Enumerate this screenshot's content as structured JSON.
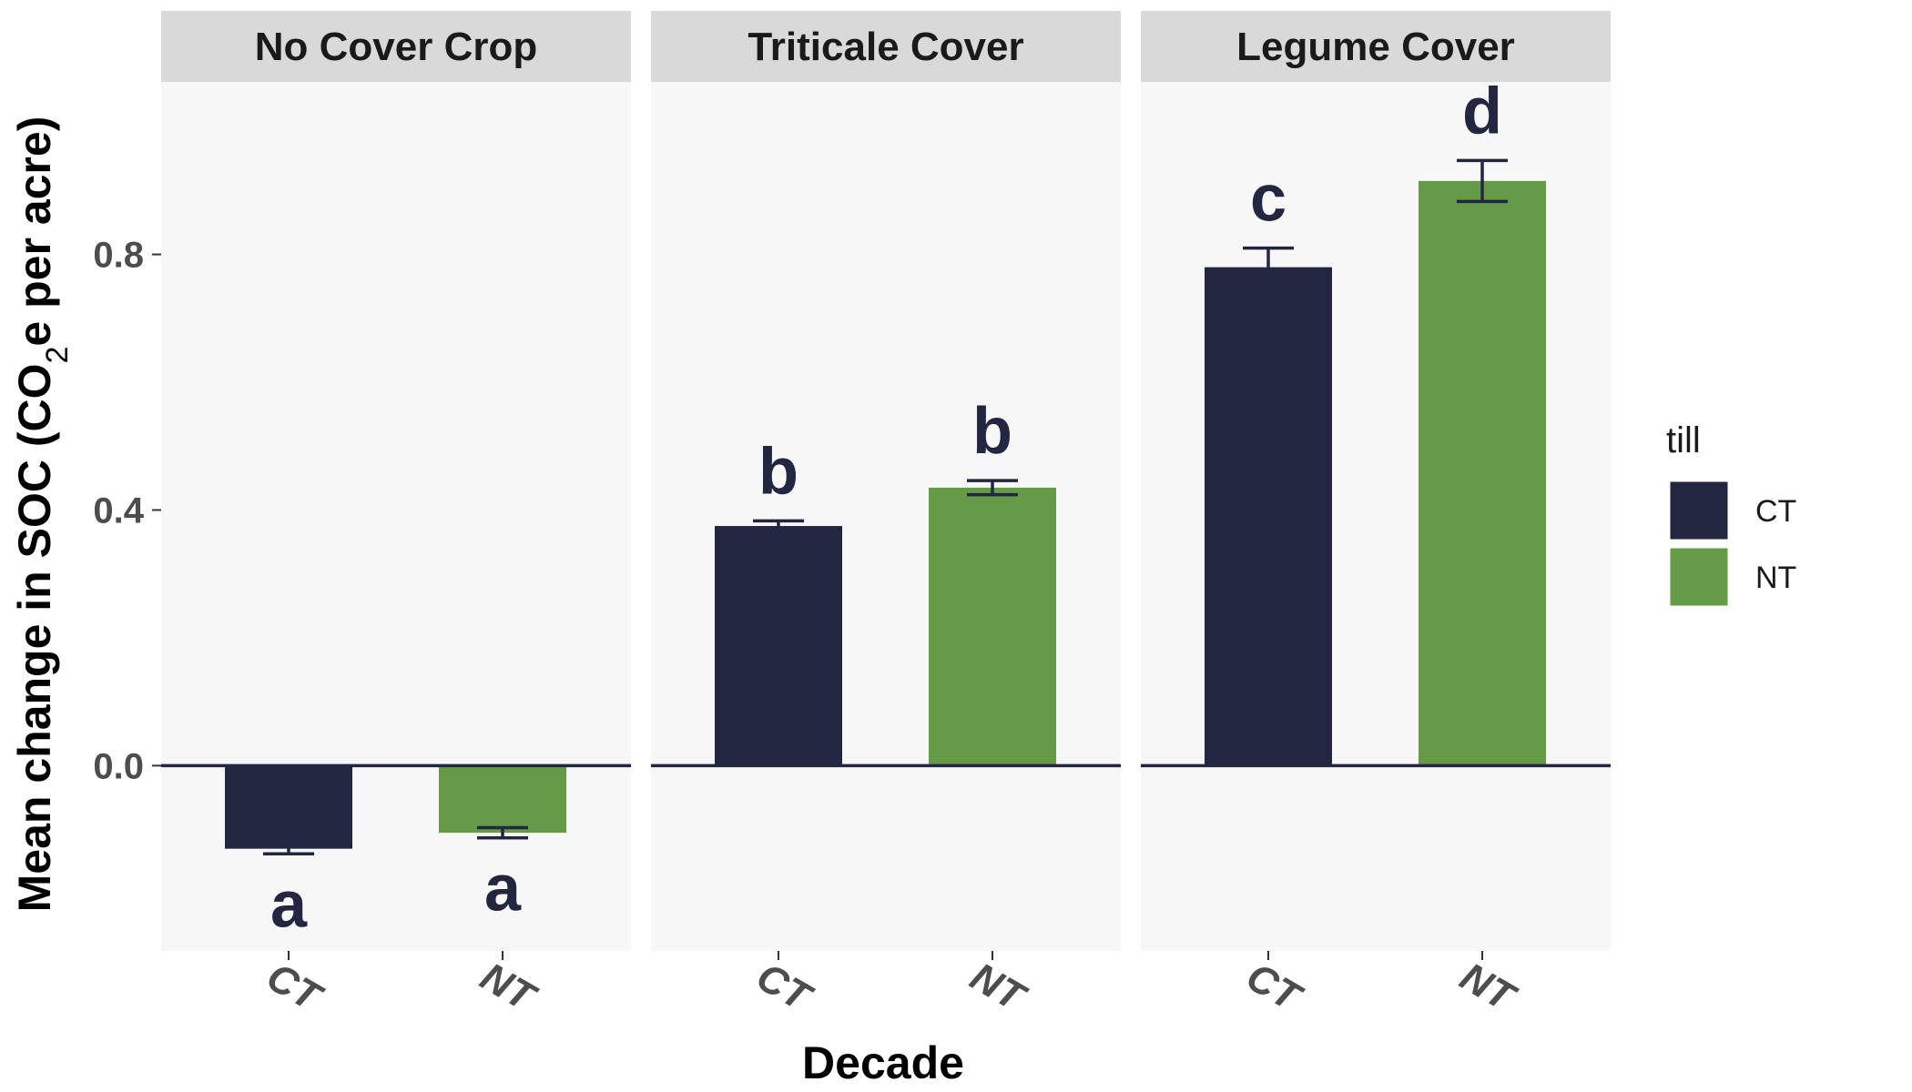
{
  "chart_data": {
    "type": "bar",
    "facets": [
      "No Cover Crop",
      "Triticale Cover",
      "Legume Cover"
    ],
    "categories": [
      "CT",
      "NT"
    ],
    "series": [
      {
        "facet": "No Cover Crop",
        "bars": [
          {
            "category": "CT",
            "value": -0.13,
            "error": 0.008,
            "label": "a"
          },
          {
            "category": "NT",
            "value": -0.105,
            "error": 0.008,
            "label": "a"
          }
        ]
      },
      {
        "facet": "Triticale Cover",
        "bars": [
          {
            "category": "CT",
            "value": 0.375,
            "error": 0.008,
            "label": "b"
          },
          {
            "category": "NT",
            "value": 0.435,
            "error": 0.011,
            "label": "b"
          }
        ]
      },
      {
        "facet": "Legume Cover",
        "bars": [
          {
            "category": "CT",
            "value": 0.78,
            "error": 0.03,
            "label": "c"
          },
          {
            "category": "NT",
            "value": 0.915,
            "error": 0.032,
            "label": "d"
          }
        ]
      }
    ],
    "xlabel": "Decade",
    "ylabel_parts": {
      "before": "Mean change in SOC (CO",
      "sub": "2",
      "after": "e per acre)"
    },
    "yticks": [
      0.0,
      0.4,
      0.8
    ],
    "ytick_labels": [
      "0.0",
      "0.4",
      "0.8"
    ],
    "ylim": [
      -0.29,
      1.07
    ],
    "legend": {
      "title": "till",
      "position": "right",
      "entries": [
        {
          "label": "CT",
          "color": "#222640"
        },
        {
          "label": "NT",
          "color": "#659a46"
        }
      ]
    },
    "colors": {
      "CT": "#222640",
      "NT": "#659a46",
      "panel_bg": "#f7f7f7",
      "strip_bg": "#d9d9d9",
      "zero_line": "#222640"
    },
    "grid": false
  }
}
